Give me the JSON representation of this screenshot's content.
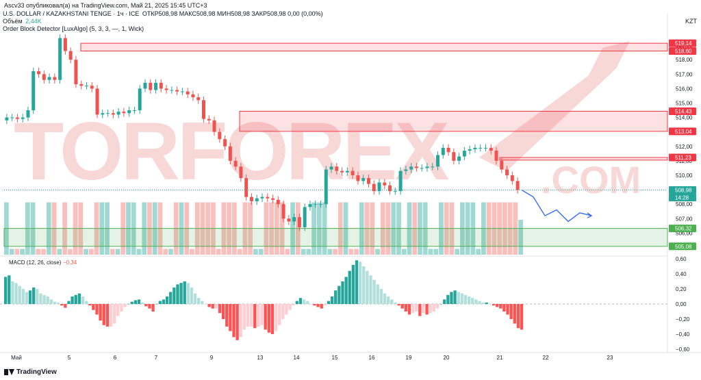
{
  "top": {
    "publisher": "Ascv33 опубликовал(а) на TradingView.com, Май 21, 2025 15:45 UTC+3"
  },
  "header": {
    "symbol": "U.S. DOLLAR / KAZAKHSTANI TENGE · 1ч · ICE",
    "ohlc": "ОТКР508,98  МАКС508,98  МИН508,98  ЗАКР508,98  0,00 (0,00%)",
    "volume_label": "Объём",
    "volume_value": "2,44K",
    "indicator": "Order Block Detector [LuxAlgo] (5, 3, 3, —, 1, Wick)"
  },
  "currency": "KZT",
  "footer": {
    "brand": "TradingView"
  },
  "colors": {
    "up": "#26a69a",
    "down": "#ef5350",
    "projection": "#2962ff",
    "bull_zone": "#4caf50",
    "bear_zone": "#f23645"
  },
  "chart_data": [
    {
      "type": "candlestick",
      "y_ticks": [
        "519,00",
        "518,00",
        "517,00",
        "516,00",
        "515,00",
        "514,00",
        "513,00",
        "512,00",
        "511,00",
        "510,00",
        "509,00",
        "508,00",
        "507,00",
        "506,00",
        "505,00"
      ],
      "ylim": [
        504.5,
        520
      ],
      "x_ticks": [
        "Май",
        "5",
        "6",
        "7",
        "9",
        "13",
        "14",
        "15",
        "16",
        "19",
        "20",
        "21",
        "22",
        "23"
      ],
      "last_price": "508,98",
      "countdown": "14:28",
      "order_blocks": [
        {
          "kind": "bearish",
          "top": 519.14,
          "bottom": 518.6,
          "top_label": "519,14",
          "bottom_label": "518,60"
        },
        {
          "kind": "bearish",
          "top": 514.43,
          "bottom": 513.04,
          "top_label": "514,43",
          "bottom_label": "513,04"
        },
        {
          "kind": "bearish",
          "top": 511.23,
          "bottom": 511.05,
          "top_label": "511,23"
        },
        {
          "kind": "bullish",
          "top": 506.32,
          "bottom": 505.08,
          "top_label": "506,32",
          "bottom_label": "505,08"
        }
      ],
      "price_path": [
        513.8,
        514.0,
        514.0,
        513.9,
        514.0,
        514.5,
        517.2,
        517.0,
        516.6,
        516.8,
        516.6,
        519.5,
        518.6,
        518.0,
        516.3,
        516.2,
        516.2,
        516.0,
        514.2,
        514.3,
        514.3,
        514.2,
        514.4,
        514.3,
        514.5,
        514.5,
        516.0,
        516.4,
        515.9,
        516.4,
        516.0,
        515.9,
        515.9,
        515.8,
        515.8,
        515.6,
        515.4,
        515.2,
        513.9,
        513.8,
        513.0,
        512.5,
        512.0,
        511.0,
        510.6,
        509.8,
        508.5,
        508.2,
        508.4,
        508.5,
        508.4,
        508.3,
        508.0,
        507.0,
        506.8,
        507.1,
        506.4,
        507.8,
        508.0,
        508.0,
        508.0,
        510.4,
        510.6,
        510.3,
        510.2,
        510.3,
        510.0,
        509.6,
        509.8,
        509.4,
        508.9,
        509.5,
        509.3,
        508.9,
        508.9,
        510.3,
        510.4,
        510.6,
        510.5,
        510.5,
        510.6,
        510.6,
        511.4,
        511.9,
        511.6,
        511.0,
        511.3,
        511.7,
        511.8,
        511.9,
        511.9,
        511.9,
        511.7,
        511.0,
        510.4,
        510.0,
        509.6,
        508.98
      ],
      "projection": [
        508.98,
        508.5,
        507.2,
        507.6,
        506.8,
        507.4,
        507.2
      ],
      "volume_levels": [
        0.9,
        0.1,
        0.1,
        0.1,
        0.9,
        0.9,
        0.1,
        0.1,
        0.9,
        0.9,
        0.1,
        0.9,
        0.1,
        0.9,
        0.9,
        0.1,
        0.1,
        0.9,
        0.9,
        0.9,
        0.1,
        0.1,
        0.9,
        0.9,
        0.9,
        0.1,
        0.9,
        0.9,
        0.9,
        0.9,
        0.1,
        0.1,
        0.9,
        0.9,
        0.9,
        0.1,
        0.9,
        0.9,
        0.9,
        0.9,
        0.1,
        0.9,
        0.9,
        0.9,
        0.1,
        0.9,
        0.9,
        0.1,
        0.1,
        0.9,
        0.9,
        0.9,
        0.9,
        0.1,
        0.9,
        0.9,
        0.1,
        0.1,
        0.9,
        0.9,
        0.9,
        0.1,
        0.1,
        0.9,
        0.9,
        0.1,
        0.1,
        0.9,
        0.9,
        0.9,
        0.1,
        0.9,
        0.9,
        0.9,
        0.9,
        0.1,
        0.9,
        0.9,
        0.9,
        0.9,
        0.1,
        0.1,
        0.9,
        0.9,
        0.9,
        0.1,
        0.9,
        0.9,
        0.9,
        0.1,
        0.9,
        0.9,
        0.9,
        0.9,
        0.9,
        0.9,
        0.9,
        0.6
      ]
    },
    {
      "type": "bar",
      "title": "MACD (12, 26, close)",
      "last_value": "−0,34",
      "y_ticks": [
        "0,60",
        "0,40",
        "0,20",
        "0,00",
        "−0,20",
        "−0,40",
        "−0,60"
      ],
      "ylim": [
        -0.6,
        0.6
      ],
      "values": [
        0.36,
        0.38,
        0.3,
        0.28,
        0.24,
        0.2,
        0.16,
        0.18,
        0.22,
        0.2,
        0.14,
        0.12,
        0.1,
        0.06,
        0.03,
        0.02,
        -0.02,
        -0.05,
        0.04,
        0.1,
        0.12,
        0.14,
        0.1,
        0.04,
        -0.02,
        -0.08,
        -0.14,
        -0.22,
        -0.28,
        -0.3,
        -0.3,
        -0.26,
        -0.16,
        -0.1,
        -0.04,
        0.0,
        0.03,
        0.05,
        0.06,
        0.02,
        -0.03,
        -0.06,
        -0.1,
        0.0,
        0.04,
        0.06,
        0.1,
        0.16,
        0.22,
        0.26,
        0.28,
        0.3,
        0.28,
        0.22,
        0.14,
        0.08,
        0.04,
        0.0,
        -0.04,
        -0.06,
        -0.06,
        -0.12,
        -0.2,
        -0.3,
        -0.36,
        -0.44,
        -0.48,
        -0.44,
        -0.34,
        -0.3,
        -0.3,
        -0.32,
        -0.3,
        -0.28,
        -0.34,
        -0.38,
        -0.4,
        -0.36,
        -0.28,
        -0.2,
        -0.14,
        -0.08,
        -0.02,
        0.04,
        0.08,
        0.06,
        0.04,
        0.0,
        -0.02,
        -0.04,
        -0.06,
        -0.02,
        0.04,
        0.1,
        0.18,
        0.24,
        0.3,
        0.36,
        0.44,
        0.52,
        0.58,
        0.56,
        0.5,
        0.44,
        0.38,
        0.32,
        0.26,
        0.2,
        0.14,
        0.1,
        0.06,
        0.02,
        -0.02,
        -0.06,
        -0.1,
        -0.14,
        -0.12,
        -0.1,
        -0.16,
        -0.12,
        -0.14,
        -0.12,
        -0.1,
        -0.06,
        0.0,
        0.06,
        0.12,
        0.16,
        0.18,
        0.16,
        0.14,
        0.12,
        0.1,
        0.08,
        0.06,
        0.04,
        0.02,
        0.02,
        0.0,
        -0.02,
        -0.04,
        -0.06,
        -0.1,
        -0.14,
        -0.2,
        -0.26,
        -0.32,
        -0.34
      ]
    }
  ]
}
